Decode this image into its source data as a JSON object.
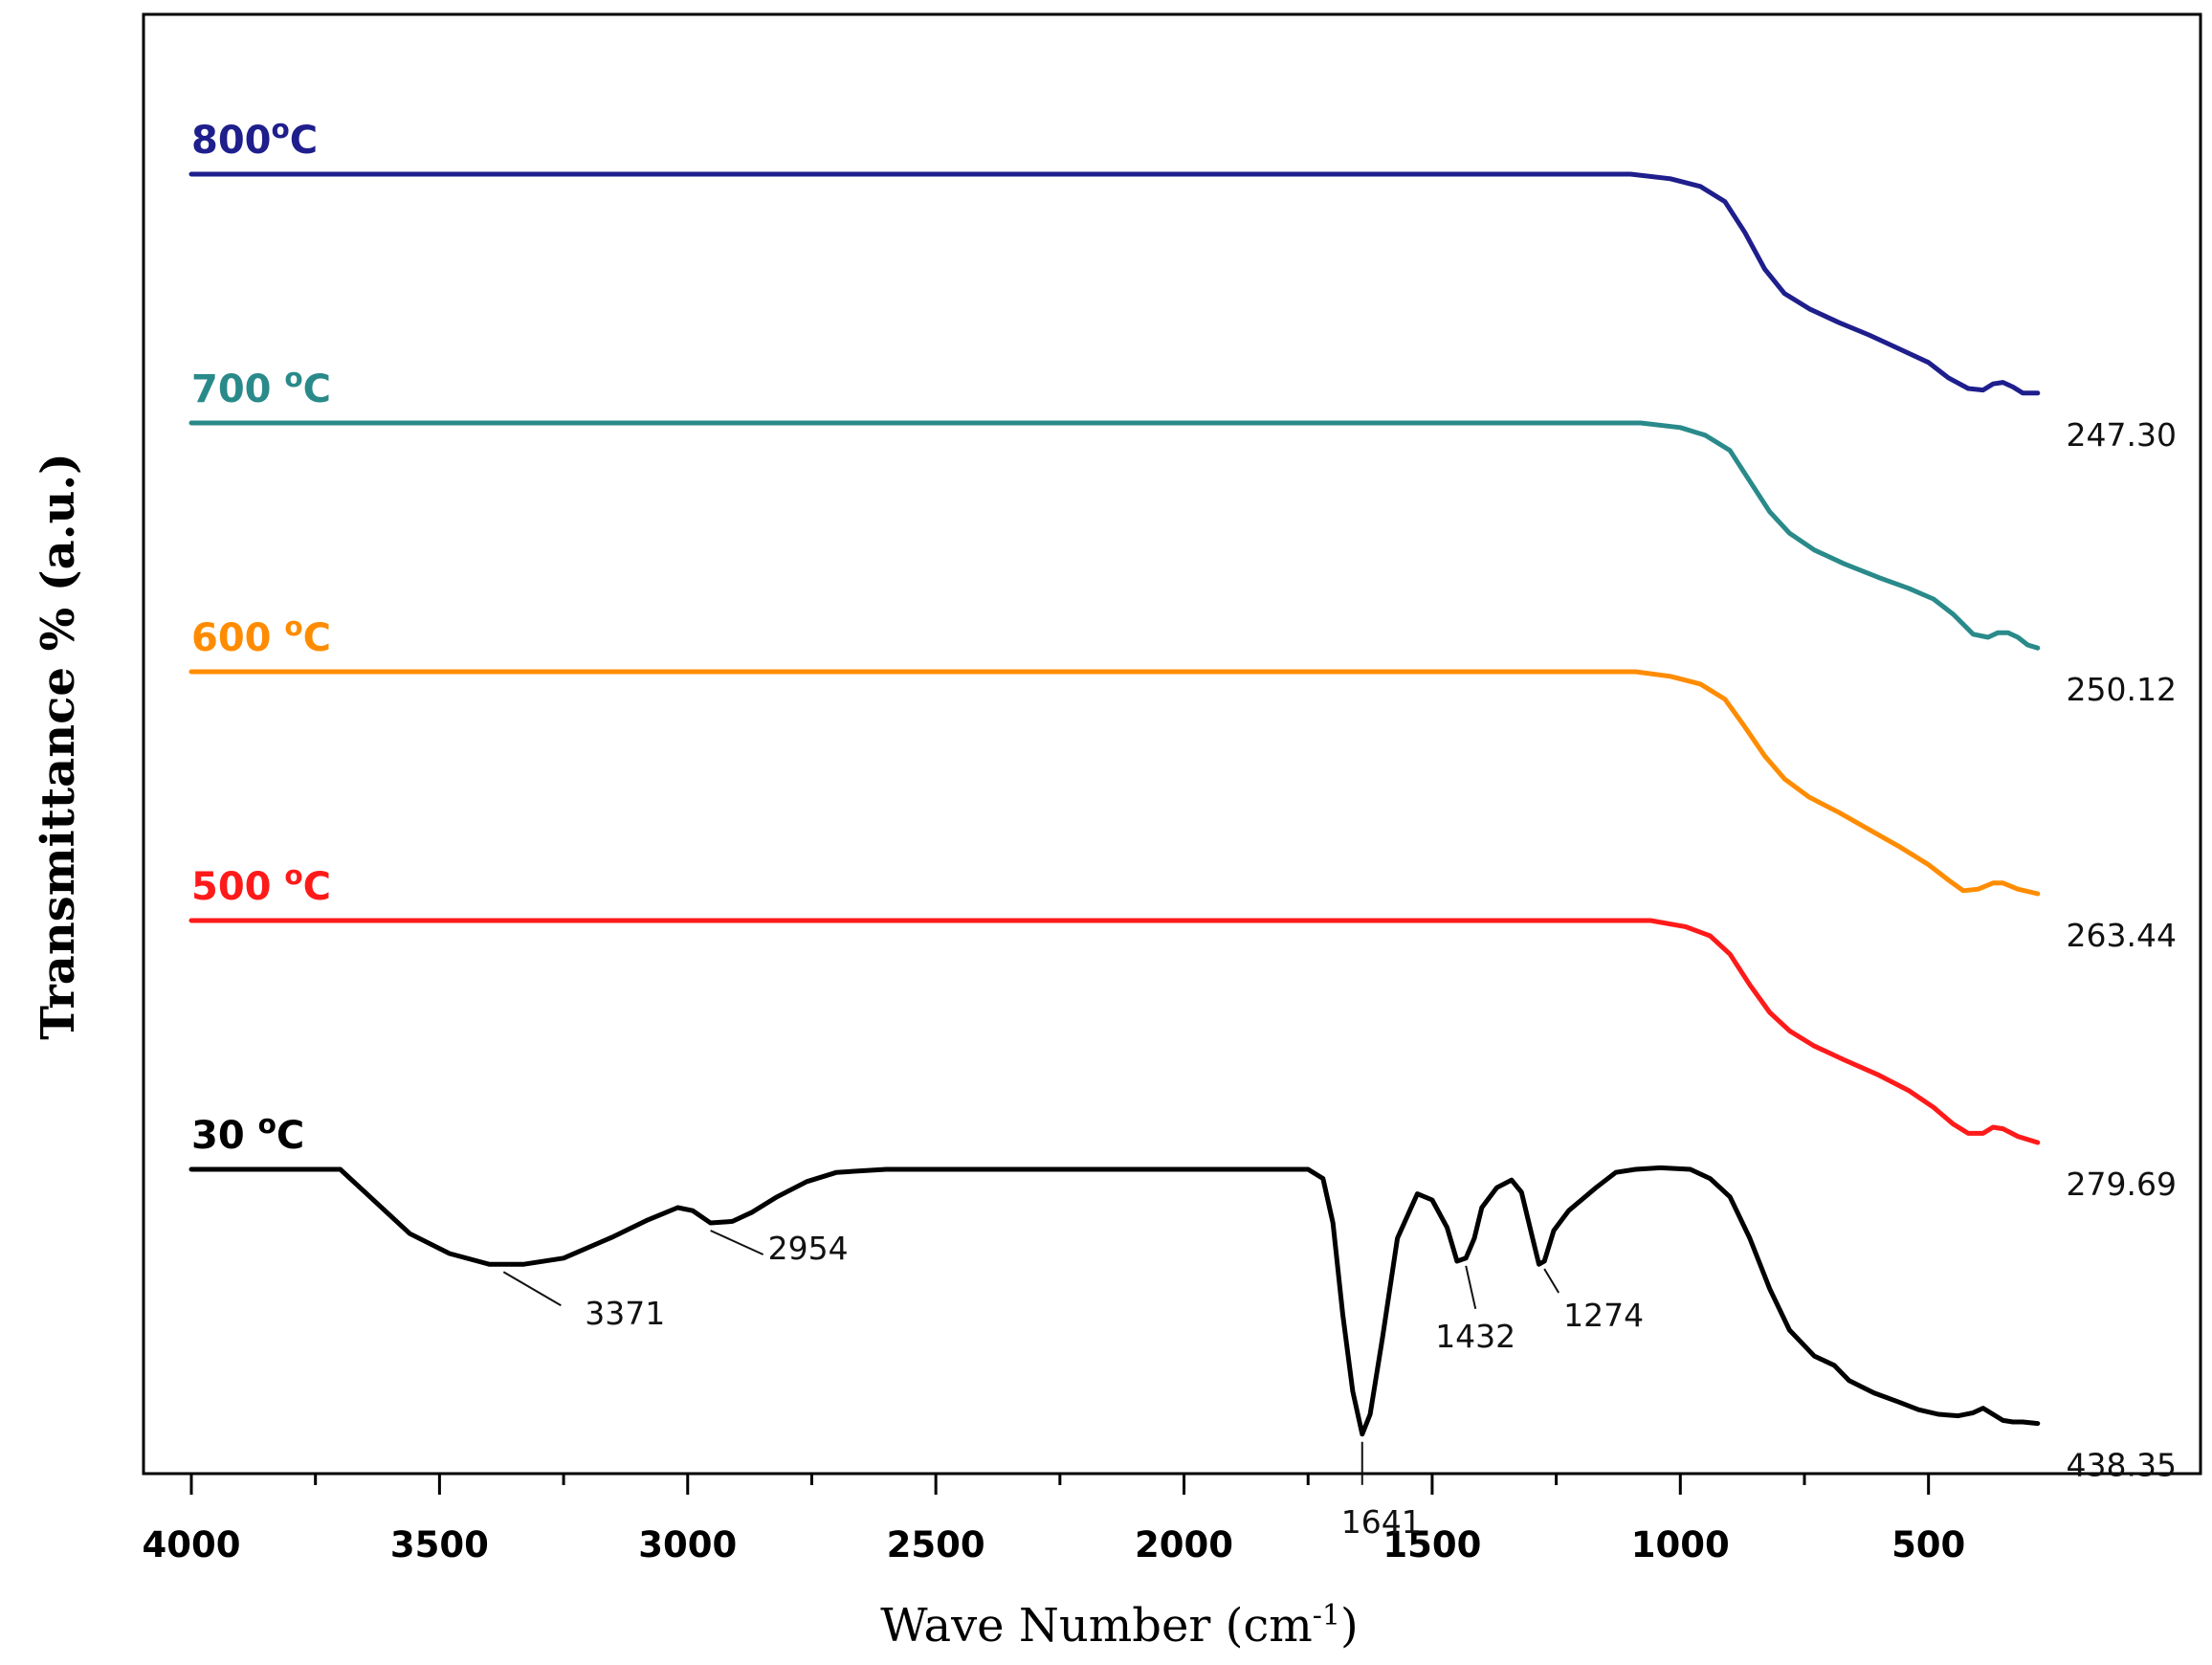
{
  "chart_data": {
    "type": "line",
    "title": "",
    "xlabel": "Wave Number (cm",
    "xlabel_sup": "-1",
    "xlabel_close": ")",
    "ylabel": "Transmittance % (a.u.)",
    "xlim": [
      4000,
      280
    ],
    "x_ticks": [
      4000,
      3500,
      3000,
      2500,
      2000,
      1500,
      1000,
      500
    ],
    "x_tick_labels": [
      "4000",
      "3500",
      "3000",
      "2500",
      "2000",
      "1500",
      "1000",
      "500"
    ],
    "y_axis_values": "none",
    "grid": false,
    "legend": "series labels placed above each trace (top-left)",
    "series": [
      {
        "name": "800°C",
        "name_parts": [
          "800",
          "o",
          "C"
        ],
        "color": "#1e1e8c",
        "offset": 4,
        "end_label": "247.30",
        "points": [
          [
            4000,
            0
          ],
          [
            1100,
            0
          ],
          [
            1020,
            -0.03
          ],
          [
            960,
            -0.08
          ],
          [
            910,
            -0.18
          ],
          [
            870,
            -0.38
          ],
          [
            830,
            -0.62
          ],
          [
            790,
            -0.78
          ],
          [
            740,
            -0.88
          ],
          [
            680,
            -0.97
          ],
          [
            620,
            -1.05
          ],
          [
            560,
            -1.14
          ],
          [
            500,
            -1.23
          ],
          [
            460,
            -1.33
          ],
          [
            420,
            -1.4
          ],
          [
            390,
            -1.41
          ],
          [
            370,
            -1.37
          ],
          [
            350,
            -1.36
          ],
          [
            330,
            -1.39
          ],
          [
            310,
            -1.43
          ],
          [
            280,
            -1.43
          ]
        ]
      },
      {
        "name": "700 °C",
        "name_parts": [
          "700 ",
          "o",
          "C"
        ],
        "color": "#2a8a8a",
        "offset": 3,
        "end_label": "250.12",
        "points": [
          [
            4000,
            0
          ],
          [
            1080,
            0
          ],
          [
            1000,
            -0.03
          ],
          [
            950,
            -0.08
          ],
          [
            900,
            -0.18
          ],
          [
            860,
            -0.38
          ],
          [
            820,
            -0.58
          ],
          [
            780,
            -0.72
          ],
          [
            730,
            -0.83
          ],
          [
            670,
            -0.92
          ],
          [
            600,
            -1.01
          ],
          [
            540,
            -1.08
          ],
          [
            490,
            -1.15
          ],
          [
            450,
            -1.25
          ],
          [
            410,
            -1.38
          ],
          [
            380,
            -1.4
          ],
          [
            360,
            -1.37
          ],
          [
            340,
            -1.37
          ],
          [
            320,
            -1.4
          ],
          [
            300,
            -1.45
          ],
          [
            280,
            -1.47
          ]
        ]
      },
      {
        "name": "600 °C",
        "name_parts": [
          "600 ",
          "o",
          "C"
        ],
        "color": "#ff8c00",
        "offset": 2,
        "end_label": "263.44",
        "points": [
          [
            4000,
            0
          ],
          [
            1090,
            0
          ],
          [
            1020,
            -0.03
          ],
          [
            960,
            -0.08
          ],
          [
            910,
            -0.18
          ],
          [
            870,
            -0.36
          ],
          [
            830,
            -0.55
          ],
          [
            790,
            -0.7
          ],
          [
            740,
            -0.82
          ],
          [
            680,
            -0.92
          ],
          [
            620,
            -1.03
          ],
          [
            560,
            -1.14
          ],
          [
            500,
            -1.26
          ],
          [
            460,
            -1.36
          ],
          [
            430,
            -1.43
          ],
          [
            400,
            -1.42
          ],
          [
            370,
            -1.38
          ],
          [
            350,
            -1.38
          ],
          [
            320,
            -1.42
          ],
          [
            280,
            -1.45
          ]
        ]
      },
      {
        "name": "500 °C",
        "name_parts": [
          "500 ",
          "o",
          "C"
        ],
        "color": "#ff1a1a",
        "offset": 1,
        "end_label": "279.69",
        "points": [
          [
            4000,
            0
          ],
          [
            1060,
            0
          ],
          [
            990,
            -0.04
          ],
          [
            940,
            -0.1
          ],
          [
            900,
            -0.22
          ],
          [
            860,
            -0.42
          ],
          [
            820,
            -0.6
          ],
          [
            780,
            -0.72
          ],
          [
            730,
            -0.82
          ],
          [
            670,
            -0.91
          ],
          [
            600,
            -1.01
          ],
          [
            540,
            -1.11
          ],
          [
            490,
            -1.22
          ],
          [
            450,
            -1.33
          ],
          [
            420,
            -1.39
          ],
          [
            390,
            -1.39
          ],
          [
            370,
            -1.35
          ],
          [
            350,
            -1.36
          ],
          [
            320,
            -1.41
          ],
          [
            280,
            -1.45
          ]
        ]
      },
      {
        "name": "30 °C",
        "name_parts": [
          "30 ",
          "o",
          "C"
        ],
        "color": "#000000",
        "offset": 0,
        "end_label": "438.35",
        "points": [
          [
            4000,
            0
          ],
          [
            3700,
            0
          ],
          [
            3640,
            -0.18
          ],
          [
            3560,
            -0.42
          ],
          [
            3480,
            -0.55
          ],
          [
            3400,
            -0.62
          ],
          [
            3330,
            -0.62
          ],
          [
            3250,
            -0.58
          ],
          [
            3150,
            -0.44
          ],
          [
            3080,
            -0.33
          ],
          [
            3020,
            -0.25
          ],
          [
            2990,
            -0.27
          ],
          [
            2954,
            -0.35
          ],
          [
            2910,
            -0.34
          ],
          [
            2870,
            -0.28
          ],
          [
            2820,
            -0.18
          ],
          [
            2760,
            -0.08
          ],
          [
            2700,
            -0.02
          ],
          [
            2600,
            0
          ],
          [
            1750,
            0
          ],
          [
            1720,
            -0.06
          ],
          [
            1700,
            -0.35
          ],
          [
            1680,
            -0.95
          ],
          [
            1660,
            -1.45
          ],
          [
            1641,
            -1.73
          ],
          [
            1625,
            -1.6
          ],
          [
            1600,
            -1.1
          ],
          [
            1570,
            -0.45
          ],
          [
            1530,
            -0.16
          ],
          [
            1500,
            -0.2
          ],
          [
            1470,
            -0.38
          ],
          [
            1450,
            -0.6
          ],
          [
            1432,
            -0.58
          ],
          [
            1415,
            -0.45
          ],
          [
            1400,
            -0.25
          ],
          [
            1370,
            -0.12
          ],
          [
            1340,
            -0.07
          ],
          [
            1320,
            -0.15
          ],
          [
            1300,
            -0.42
          ],
          [
            1285,
            -0.62
          ],
          [
            1274,
            -0.6
          ],
          [
            1255,
            -0.4
          ],
          [
            1225,
            -0.27
          ],
          [
            1170,
            -0.12
          ],
          [
            1130,
            -0.02
          ],
          [
            1090,
            0
          ],
          [
            1040,
            0.01
          ],
          [
            980,
            0
          ],
          [
            940,
            -0.06
          ],
          [
            900,
            -0.18
          ],
          [
            860,
            -0.45
          ],
          [
            820,
            -0.78
          ],
          [
            780,
            -1.05
          ],
          [
            730,
            -1.22
          ],
          [
            690,
            -1.28
          ],
          [
            660,
            -1.38
          ],
          [
            610,
            -1.46
          ],
          [
            560,
            -1.52
          ],
          [
            520,
            -1.57
          ],
          [
            480,
            -1.6
          ],
          [
            440,
            -1.61
          ],
          [
            410,
            -1.59
          ],
          [
            390,
            -1.56
          ],
          [
            370,
            -1.6
          ],
          [
            350,
            -1.64
          ],
          [
            330,
            -1.65
          ],
          [
            310,
            -1.65
          ],
          [
            280,
            -1.66
          ]
        ]
      }
    ],
    "annotations": [
      {
        "label": "3371",
        "x": 3371,
        "series": "30 °C"
      },
      {
        "label": "2954",
        "x": 2954,
        "series": "30 °C"
      },
      {
        "label": "1641",
        "x": 1641,
        "series": "30 °C"
      },
      {
        "label": "1432",
        "x": 1432,
        "series": "30 °C"
      },
      {
        "label": "1274",
        "x": 1274,
        "series": "30 °C"
      }
    ]
  }
}
